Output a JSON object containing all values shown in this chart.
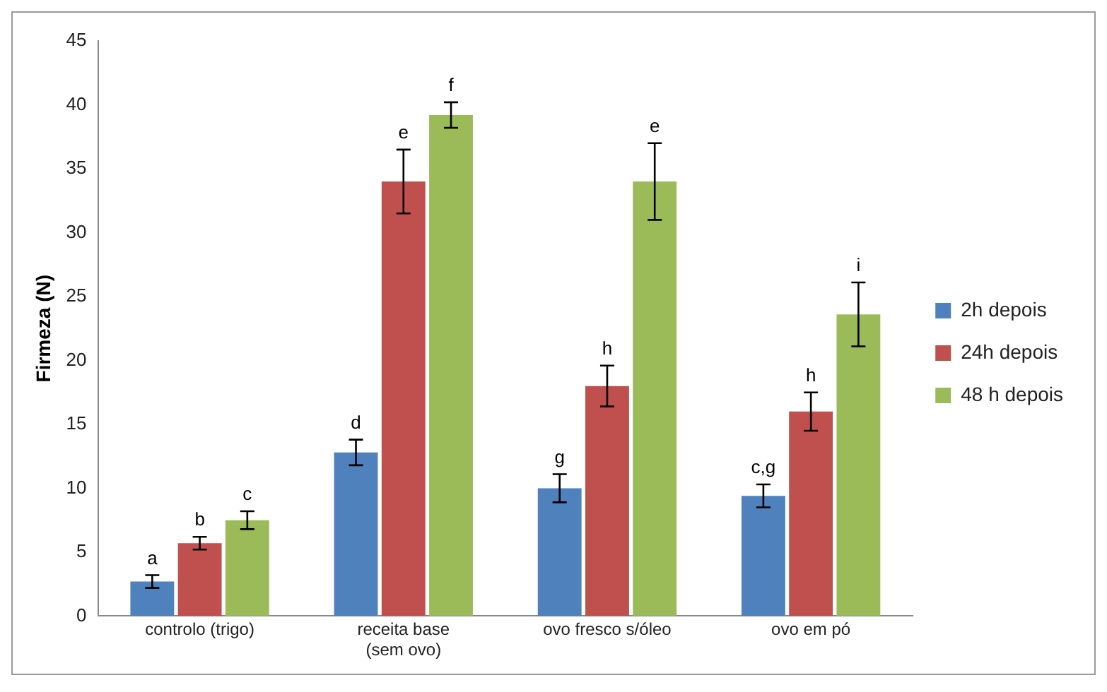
{
  "chart_data": {
    "type": "bar",
    "ylabel": "Firmeza (N)",
    "categories": [
      "controlo (trigo)",
      "receita base\n(sem ovo)",
      "ovo fresco s/óleo",
      "ovo em pó"
    ],
    "series": [
      {
        "name": "2h depois",
        "color": "#4f81bd",
        "values": [
          2.7,
          12.8,
          10,
          9.4
        ],
        "errors": [
          0.5,
          1,
          1.1,
          0.9
        ],
        "value_labels": [
          "a",
          "d",
          "g",
          "c,g"
        ]
      },
      {
        "name": "24h depois",
        "color": "#c0504d",
        "values": [
          5.7,
          34,
          18,
          16
        ],
        "errors": [
          0.5,
          2.5,
          1.6,
          1.5
        ],
        "value_labels": [
          "b",
          "e",
          "h",
          "h"
        ]
      },
      {
        "name": "48 h depois",
        "color": "#9bbb59",
        "values": [
          7.5,
          39.2,
          34,
          23.6
        ],
        "errors": [
          0.7,
          1,
          3,
          2.5
        ],
        "value_labels": [
          "c",
          "f",
          "e",
          "i"
        ]
      }
    ],
    "ylim": [
      0,
      45
    ],
    "yticks": [
      0,
      5,
      10,
      15,
      20,
      25,
      30,
      35,
      40,
      45
    ],
    "grid": false,
    "legend": "right"
  }
}
